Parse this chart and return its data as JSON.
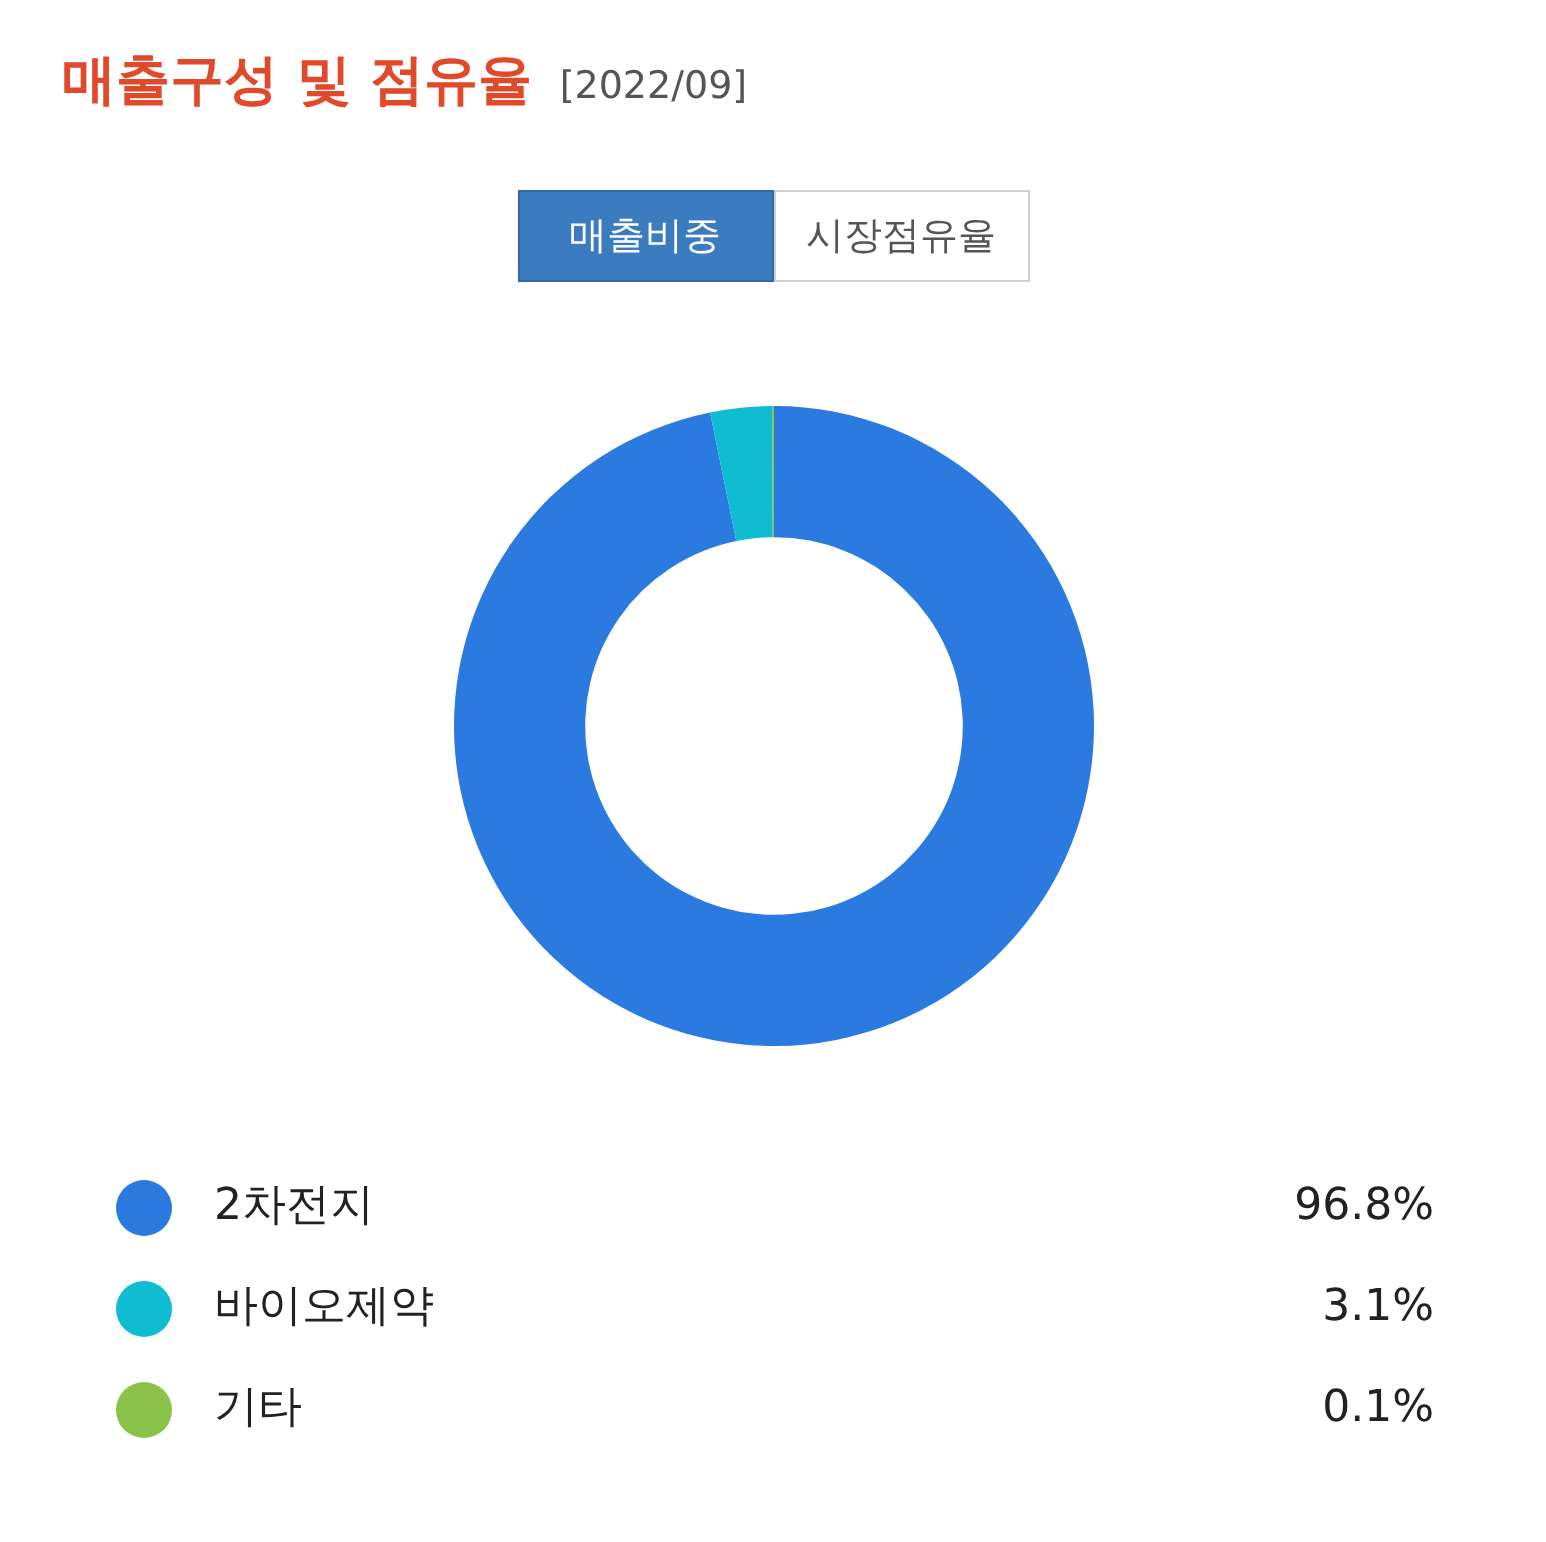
{
  "chart_data": {
    "type": "donut",
    "title": "매출구성 및 점유율",
    "subtitle": "[2022/09]",
    "annotations": [
      "매출비중",
      "시장점유율"
    ],
    "categories": [
      "2차전지",
      "바이오제약",
      "기타"
    ],
    "values": [
      96.8,
      3.1,
      0.1
    ],
    "colors": [
      "#2a7ae0",
      "#0fbcd2",
      "#8bc34a"
    ],
    "value_labels": [
      "96.8%",
      "3.1%",
      "0.1%"
    ],
    "legend": "bottom"
  }
}
